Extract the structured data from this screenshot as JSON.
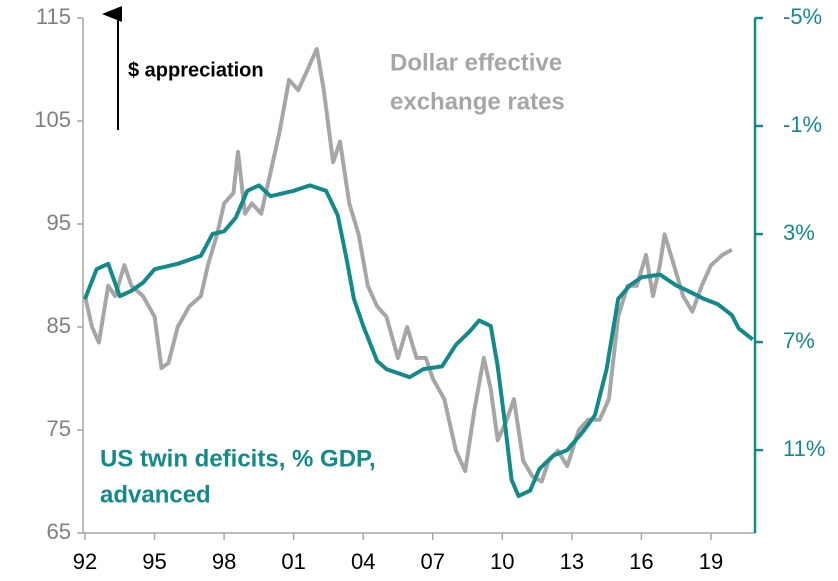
{
  "chart_data": {
    "type": "line",
    "annotations": {
      "appreciation": "$ appreciation",
      "dollar": [
        "Dollar effective",
        "exchange rates"
      ],
      "deficit": [
        "US twin deficits, % GDP,",
        "advanced"
      ]
    },
    "xlim": [
      1992,
      2020.9
    ],
    "xticks": [
      {
        "value": 1992,
        "label": "92"
      },
      {
        "value": 1995,
        "label": "95"
      },
      {
        "value": 1998,
        "label": "98"
      },
      {
        "value": 2001,
        "label": "01"
      },
      {
        "value": 2004,
        "label": "04"
      },
      {
        "value": 2007,
        "label": "07"
      },
      {
        "value": 2010,
        "label": "10"
      },
      {
        "value": 2013,
        "label": "13"
      },
      {
        "value": 2016,
        "label": "16"
      },
      {
        "value": 2019,
        "label": "19"
      }
    ],
    "ylim": [
      65,
      115
    ],
    "yticks": [
      65,
      75,
      85,
      95,
      105,
      115
    ],
    "y2lim": [
      14.07,
      -5
    ],
    "y2ticks": [
      {
        "value": -5,
        "label": "-5%"
      },
      {
        "value": -1,
        "label": "-1%"
      },
      {
        "value": 3,
        "label": "3%"
      },
      {
        "value": 7,
        "label": "7%"
      },
      {
        "value": 11,
        "label": "11%"
      }
    ],
    "series": [
      {
        "color": "#a6a6a6",
        "x": [
          1992.0,
          1992.3,
          1992.6,
          1993.0,
          1993.3,
          1993.7,
          1994.0,
          1994.5,
          1995.0,
          1995.3,
          1995.6,
          1996.0,
          1996.5,
          1997.0,
          1997.3,
          1997.7,
          1998.0,
          1998.4,
          1998.6,
          1998.9,
          1999.2,
          1999.6,
          2000.0,
          2000.4,
          2000.8,
          2001.2,
          2001.6,
          2002.0,
          2002.3,
          2002.7,
          2003.0,
          2003.4,
          2003.8,
          2004.2,
          2004.6,
          2005.0,
          2005.5,
          2005.9,
          2006.3,
          2006.7,
          2007.0,
          2007.5,
          2008.0,
          2008.4,
          2008.8,
          2009.2,
          2009.5,
          2009.8,
          2010.2,
          2010.5,
          2010.9,
          2011.3,
          2011.7,
          2012.0,
          2012.4,
          2012.8,
          2013.3,
          2013.7,
          2014.2,
          2014.6,
          2015.0,
          2015.4,
          2015.8,
          2016.2,
          2016.5,
          2016.8,
          2017.0,
          2017.4,
          2017.8,
          2018.2,
          2018.6,
          2019.0,
          2019.5,
          2019.9
        ],
        "values": [
          88,
          85,
          83.5,
          89,
          88,
          91,
          89,
          88,
          86,
          81,
          81.5,
          85,
          87,
          88,
          91,
          94,
          97,
          98,
          102,
          96,
          97,
          96,
          100,
          104,
          109,
          108,
          110,
          112,
          108,
          101,
          103,
          97,
          94,
          89,
          87,
          86,
          82,
          85,
          82,
          82,
          80,
          78,
          73,
          71,
          77,
          82,
          79,
          74,
          76,
          78,
          72,
          70.5,
          70,
          72,
          73,
          71.5,
          75,
          76,
          76,
          78,
          86,
          89,
          89,
          92,
          88,
          91,
          94,
          91,
          88,
          86.5,
          89,
          91,
          92,
          92.5
        ]
      },
      {
        "color": "#138a8a",
        "axis": "y2",
        "x": [
          1992.0,
          1992.5,
          1993.0,
          1993.5,
          1994.0,
          1994.5,
          1995.0,
          1996.0,
          1997.0,
          1997.5,
          1998.0,
          1998.5,
          1999.0,
          1999.5,
          2000.0,
          2001.0,
          2001.7,
          2002.4,
          2002.9,
          2003.3,
          2003.6,
          2004.0,
          2004.6,
          2005.0,
          2006.0,
          2006.6,
          2007.4,
          2008.0,
          2008.6,
          2009.0,
          2009.5,
          2009.8,
          2010.1,
          2010.4,
          2010.7,
          2011.2,
          2011.6,
          2012.2,
          2012.8,
          2013.5,
          2014.0,
          2014.5,
          2015.0,
          2015.5,
          2016.0,
          2016.8,
          2017.5,
          2018.0,
          2018.7,
          2019.3,
          2019.9,
          2020.2,
          2020.8
        ],
        "values": [
          5.4,
          4.3,
          4.1,
          5.3,
          5.1,
          4.8,
          4.3,
          4.1,
          3.8,
          3.0,
          2.9,
          2.4,
          1.4,
          1.2,
          1.6,
          1.4,
          1.2,
          1.4,
          2.3,
          4.0,
          5.4,
          6.4,
          7.7,
          8.0,
          8.3,
          8.0,
          7.9,
          7.1,
          6.6,
          6.2,
          6.4,
          7.9,
          9.9,
          12.1,
          12.7,
          12.5,
          11.7,
          11.2,
          11.0,
          10.3,
          9.7,
          8.0,
          5.4,
          4.9,
          4.6,
          4.5,
          4.9,
          5.1,
          5.4,
          5.6,
          6.0,
          6.5,
          6.9
        ]
      }
    ]
  }
}
